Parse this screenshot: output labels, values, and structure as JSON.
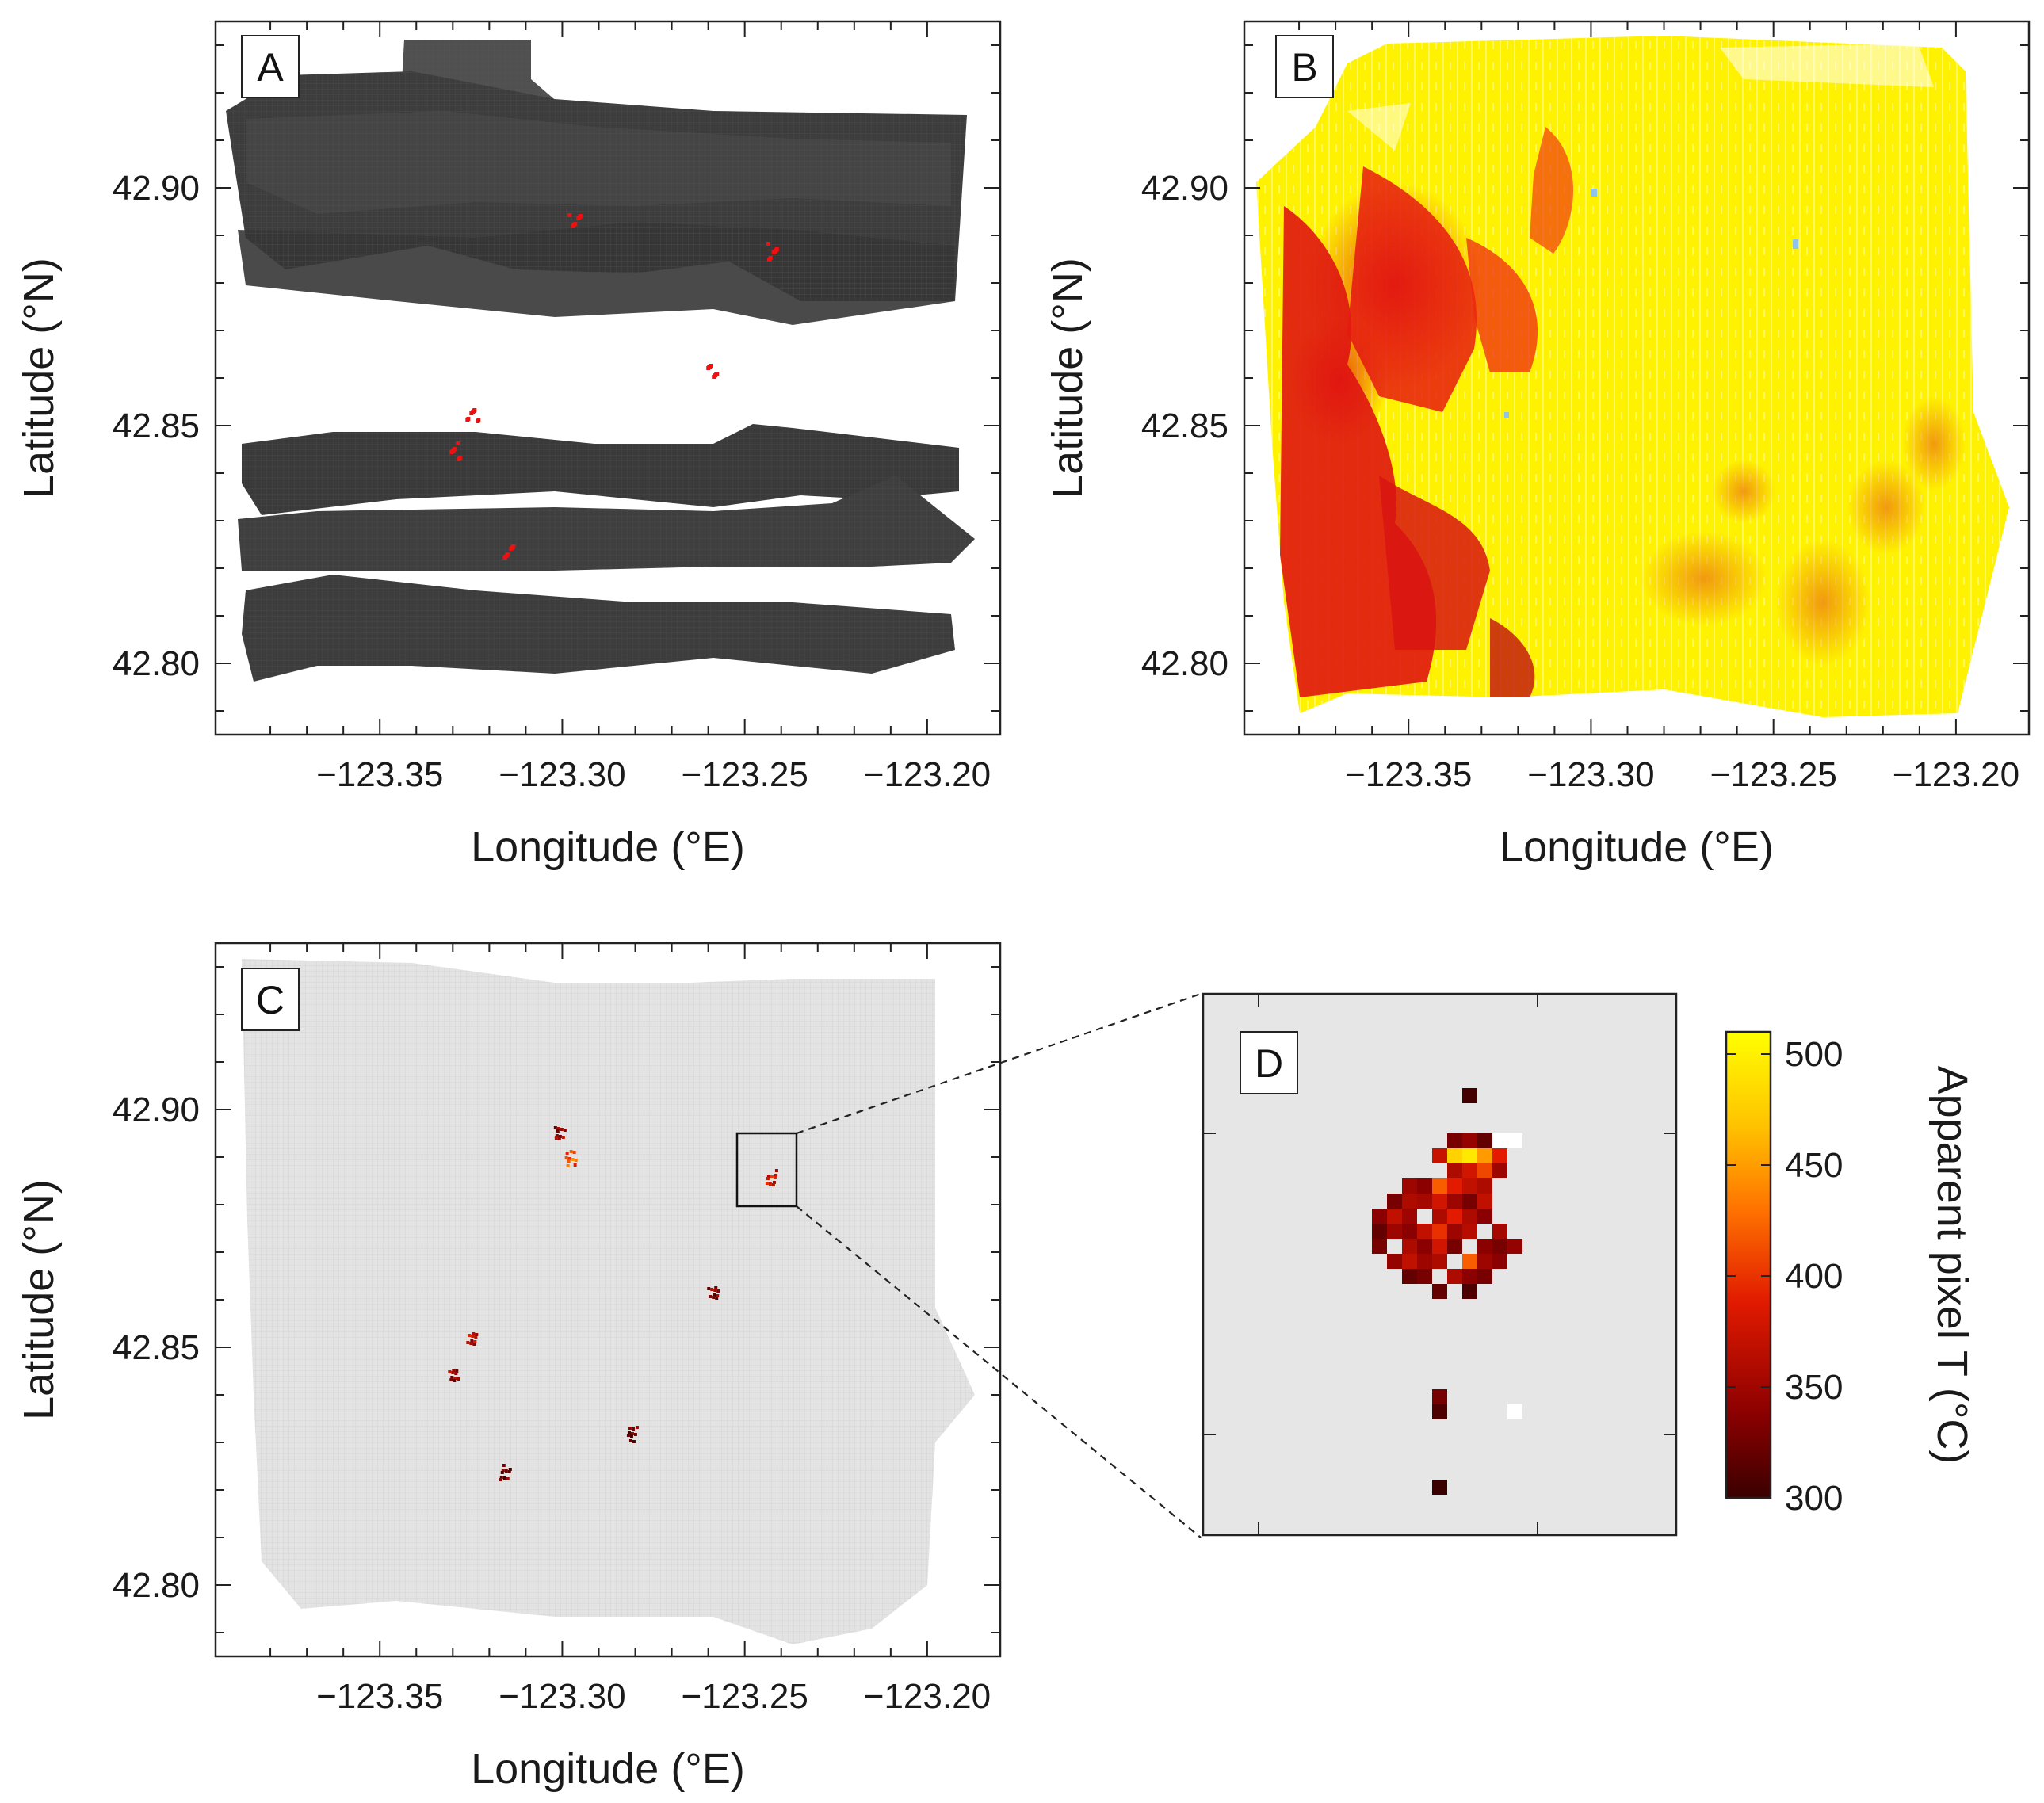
{
  "figure": {
    "panels": [
      "A",
      "B",
      "C",
      "D"
    ],
    "colorbar": {
      "label": "Apparent pixel T (°C)",
      "ticks": [
        "500",
        "450",
        "400",
        "350",
        "300"
      ],
      "min": 300,
      "max": 510
    },
    "colors": {
      "swath_dark": "#3c3c3c",
      "swath_light": "#e4e4e4",
      "hot": "#ee1111",
      "cold": "#8fc3ec"
    }
  },
  "chart_data": [
    {
      "panel": "A",
      "type": "heatmap",
      "description_source": "hillshade swaths with fire pixels",
      "xlabel": "Longitude (°E)",
      "ylabel": "Latitude (°N)",
      "xticks": [
        "−123.35",
        "−123.30",
        "−123.25",
        "−123.20"
      ],
      "yticks": [
        "42.90",
        "42.85",
        "42.80"
      ],
      "xlim": [
        -123.395,
        -123.18
      ],
      "ylim": [
        42.785,
        42.935
      ],
      "hot_spots": [
        {
          "lon": -123.297,
          "lat": 42.893
        },
        {
          "lon": -123.243,
          "lat": 42.887
        },
        {
          "lon": -123.259,
          "lat": 42.862
        },
        {
          "lon": -123.325,
          "lat": 42.852
        },
        {
          "lon": -123.33,
          "lat": 42.845
        },
        {
          "lon": -123.315,
          "lat": 42.824
        }
      ]
    },
    {
      "panel": "B",
      "type": "heatmap",
      "xlabel": "Longitude (°E)",
      "ylabel": "Latitude (°N)",
      "xticks": [
        "−123.35",
        "−123.30",
        "−123.25",
        "−123.20"
      ],
      "yticks": [
        "42.90",
        "42.85",
        "42.80"
      ],
      "xlim": [
        -123.395,
        -123.18
      ],
      "ylim": [
        42.785,
        42.935
      ]
    },
    {
      "panel": "C",
      "type": "heatmap",
      "xlabel": "Longitude (°E)",
      "ylabel": "Latitude (°N)",
      "xticks": [
        "−123.35",
        "−123.30",
        "−123.25",
        "−123.20"
      ],
      "yticks": [
        "42.90",
        "42.85",
        "42.80"
      ],
      "xlim": [
        -123.395,
        -123.18
      ],
      "ylim": [
        42.785,
        42.935
      ],
      "inset_box_lon": [
        -123.252,
        -123.235
      ],
      "inset_box_lat": [
        42.878,
        42.894
      ],
      "hot_spots": [
        {
          "lon": -123.301,
          "lat": 42.895,
          "t": 340
        },
        {
          "lon": -123.298,
          "lat": 42.89,
          "t": 410
        },
        {
          "lon": -123.243,
          "lat": 42.886,
          "t": 370
        },
        {
          "lon": -123.259,
          "lat": 42.862,
          "t": 330
        },
        {
          "lon": -123.325,
          "lat": 42.852,
          "t": 360
        },
        {
          "lon": -123.33,
          "lat": 42.844,
          "t": 340
        },
        {
          "lon": -123.281,
          "lat": 42.832,
          "t": 320
        },
        {
          "lon": -123.316,
          "lat": 42.824,
          "t": 320
        }
      ]
    },
    {
      "panel": "D",
      "type": "heatmap",
      "description_source": "zoom of boxed region in C; pixel grid col,row with apparent temperature °C",
      "pixels": [
        [
          9,
          3,
          305
        ],
        [
          8,
          6,
          330
        ],
        [
          9,
          6,
          345
        ],
        [
          10,
          6,
          320
        ],
        [
          7,
          7,
          375
        ],
        [
          8,
          7,
          480
        ],
        [
          9,
          7,
          495
        ],
        [
          10,
          7,
          450
        ],
        [
          11,
          7,
          390
        ],
        [
          8,
          8,
          360
        ],
        [
          9,
          8,
          380
        ],
        [
          10,
          8,
          410
        ],
        [
          11,
          8,
          350
        ],
        [
          5,
          9,
          350
        ],
        [
          6,
          9,
          340
        ],
        [
          7,
          9,
          420
        ],
        [
          8,
          9,
          390
        ],
        [
          9,
          9,
          370
        ],
        [
          10,
          9,
          360
        ],
        [
          4,
          10,
          330
        ],
        [
          5,
          10,
          360
        ],
        [
          6,
          10,
          355
        ],
        [
          7,
          10,
          380
        ],
        [
          8,
          10,
          350
        ],
        [
          9,
          10,
          330
        ],
        [
          10,
          10,
          370
        ],
        [
          3,
          11,
          340
        ],
        [
          4,
          11,
          370
        ],
        [
          5,
          11,
          350
        ],
        [
          7,
          11,
          360
        ],
        [
          8,
          11,
          390
        ],
        [
          9,
          11,
          360
        ],
        [
          10,
          11,
          340
        ],
        [
          3,
          12,
          320
        ],
        [
          4,
          12,
          350
        ],
        [
          5,
          12,
          340
        ],
        [
          6,
          12,
          370
        ],
        [
          7,
          12,
          400
        ],
        [
          8,
          12,
          350
        ],
        [
          9,
          12,
          365
        ],
        [
          11,
          12,
          355
        ],
        [
          3,
          13,
          330
        ],
        [
          5,
          13,
          360
        ],
        [
          6,
          13,
          340
        ],
        [
          7,
          13,
          380
        ],
        [
          8,
          13,
          330
        ],
        [
          10,
          13,
          340
        ],
        [
          11,
          13,
          330
        ],
        [
          12,
          13,
          345
        ],
        [
          4,
          14,
          345
        ],
        [
          5,
          14,
          370
        ],
        [
          6,
          14,
          350
        ],
        [
          7,
          14,
          360
        ],
        [
          9,
          14,
          420
        ],
        [
          10,
          14,
          350
        ],
        [
          11,
          14,
          340
        ],
        [
          5,
          15,
          320
        ],
        [
          6,
          15,
          330
        ],
        [
          8,
          15,
          360
        ],
        [
          9,
          15,
          340
        ],
        [
          10,
          15,
          330
        ],
        [
          7,
          16,
          320
        ],
        [
          9,
          16,
          310
        ],
        [
          7,
          23,
          330
        ],
        [
          7,
          24,
          310
        ],
        [
          7,
          29,
          300
        ]
      ],
      "white_pixels": [
        [
          11,
          6
        ],
        [
          12,
          6
        ],
        [
          12,
          24
        ]
      ]
    }
  ]
}
